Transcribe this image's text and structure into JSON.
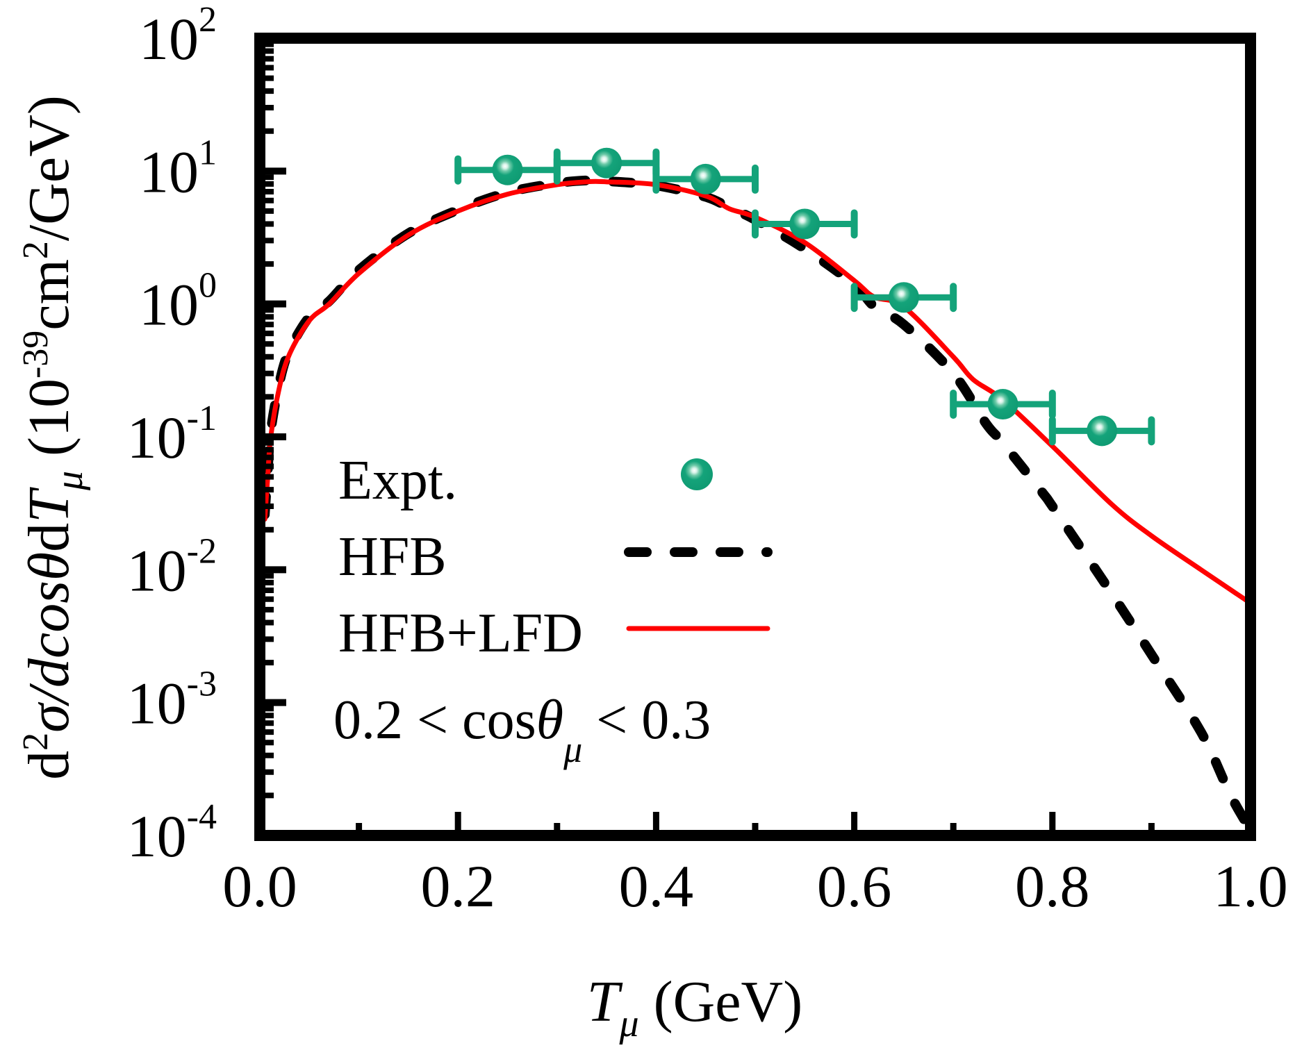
{
  "chart_data": {
    "type": "line",
    "title": "",
    "xlabel": {
      "main": "T",
      "sub": "μ",
      "unit": " (GeV)"
    },
    "ylabel": {
      "parts": [
        "d",
        "2",
        "σ/dcos",
        "θ",
        "d",
        "T",
        "μ",
        " (10",
        "-39",
        "cm",
        "2",
        "/GeV)"
      ]
    },
    "xlim": [
      0.0,
      1.0
    ],
    "ylim": [
      0.0001,
      100
    ],
    "yscale": "log",
    "grid": false,
    "x_ticks": [
      "0.0",
      "0.2",
      "0.4",
      "0.6",
      "0.8",
      "1.0"
    ],
    "x_tick_values": [
      0.0,
      0.2,
      0.4,
      0.6,
      0.8,
      1.0
    ],
    "y_ticks": [
      {
        "base": "10",
        "exp": "2",
        "value": 100
      },
      {
        "base": "10",
        "exp": "1",
        "value": 10
      },
      {
        "base": "10",
        "exp": "0",
        "value": 1
      },
      {
        "base": "10",
        "exp": "-1",
        "value": 0.1
      },
      {
        "base": "10",
        "exp": "-2",
        "value": 0.01
      },
      {
        "base": "10",
        "exp": "-3",
        "value": 0.001
      },
      {
        "base": "10",
        "exp": "-4",
        "value": 0.0001
      }
    ],
    "legend": {
      "placement": "lower-left",
      "entries": [
        {
          "label": "Expt.",
          "style": "marker"
        },
        {
          "label": "HFB",
          "style": "dashed"
        },
        {
          "label": "HFB+LFD",
          "style": "solid"
        }
      ],
      "annotation": {
        "left": "0.2  < cos",
        "theta": "θ",
        "sub": "μ",
        "right": " < 0.3"
      }
    },
    "series": [
      {
        "name": "Expt.",
        "kind": "scatter",
        "color": "#14a37a",
        "points": [
          {
            "x": 0.25,
            "y": 10.2,
            "xerr": 0.05
          },
          {
            "x": 0.35,
            "y": 11.5,
            "xerr": 0.05
          },
          {
            "x": 0.45,
            "y": 8.7,
            "xerr": 0.05
          },
          {
            "x": 0.55,
            "y": 4.0,
            "xerr": 0.05
          },
          {
            "x": 0.65,
            "y": 1.12,
            "xerr": 0.05
          },
          {
            "x": 0.75,
            "y": 0.176,
            "xerr": 0.05
          },
          {
            "x": 0.85,
            "y": 0.111,
            "xerr": 0.05
          }
        ]
      },
      {
        "name": "HFB",
        "kind": "line",
        "style": "dashed",
        "color": "#000000",
        "x": [
          0.005,
          0.008,
          0.011,
          0.02,
          0.03,
          0.05,
          0.07,
          0.1,
          0.15,
          0.2,
          0.25,
          0.3,
          0.33,
          0.35,
          0.4,
          0.45,
          0.474,
          0.5,
          0.55,
          0.6,
          0.62,
          0.65,
          0.7,
          0.733,
          0.75,
          0.79,
          0.8,
          0.84,
          0.867,
          0.9,
          0.95,
          0.98,
          1.0
        ],
        "y": [
          0.026,
          0.055,
          0.11,
          0.26,
          0.45,
          0.8,
          1.05,
          1.8,
          3.4,
          5.1,
          6.9,
          8.1,
          8.5,
          8.4,
          7.8,
          6.4,
          5.3,
          4.3,
          2.6,
          1.4,
          0.96,
          0.7,
          0.3,
          0.126,
          0.09,
          0.038,
          0.03,
          0.011,
          0.0055,
          0.0023,
          0.0006,
          0.0002,
          0.00011
        ]
      },
      {
        "name": "HFB+LFD",
        "kind": "line",
        "style": "solid",
        "color": "#ff0000",
        "x": [
          0.005,
          0.008,
          0.011,
          0.02,
          0.03,
          0.05,
          0.07,
          0.1,
          0.15,
          0.2,
          0.25,
          0.3,
          0.33,
          0.35,
          0.4,
          0.45,
          0.474,
          0.5,
          0.55,
          0.6,
          0.62,
          0.65,
          0.7,
          0.72,
          0.75,
          0.8,
          0.86,
          0.9,
          0.95,
          1.0
        ],
        "y": [
          0.024,
          0.05,
          0.1,
          0.24,
          0.42,
          0.75,
          1.0,
          1.7,
          3.3,
          5.0,
          6.7,
          7.9,
          8.3,
          8.3,
          7.9,
          6.5,
          5.2,
          4.5,
          2.9,
          1.5,
          1.13,
          0.95,
          0.4,
          0.27,
          0.19,
          0.085,
          0.031,
          0.018,
          0.01,
          0.0056
        ]
      }
    ]
  }
}
